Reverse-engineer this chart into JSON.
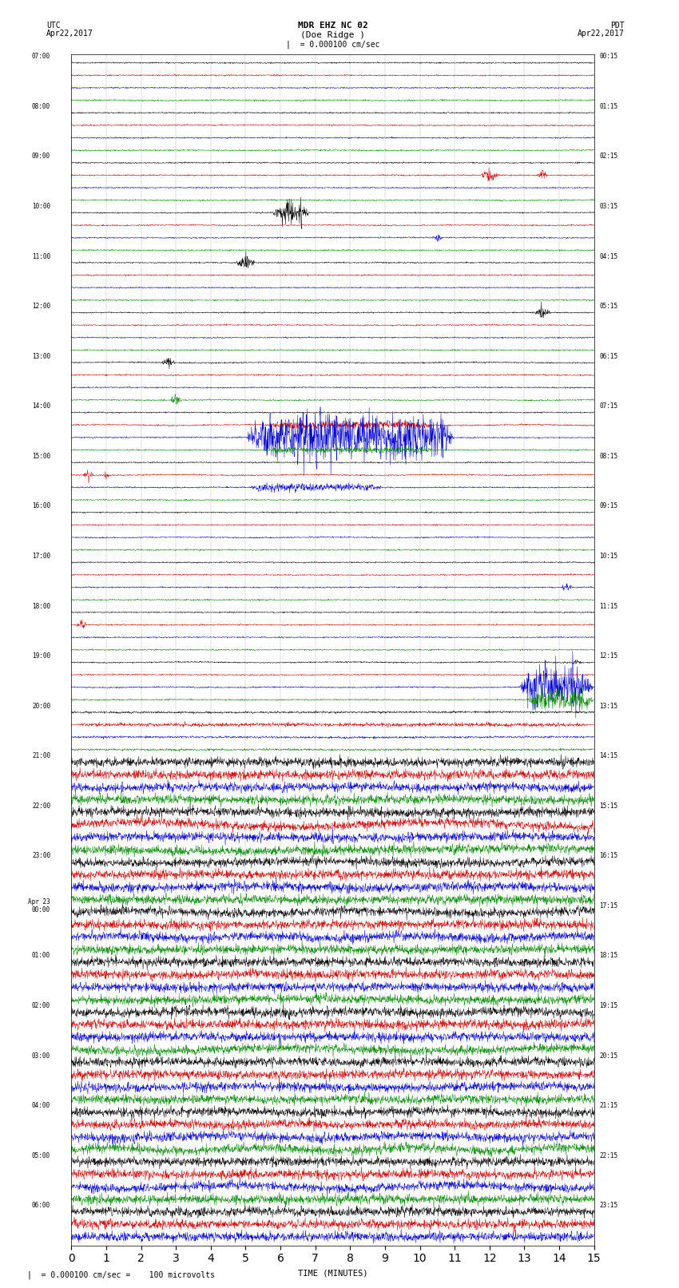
{
  "title_line1": "MDR EHZ NC 02",
  "title_line2": "(Doe Ridge )",
  "scale_label": "= 0.000100 cm/sec",
  "utc_label": "UTC",
  "pdt_label": "PDT",
  "date_left": "Apr22,2017",
  "date_right": "Apr22,2017",
  "xlabel": "TIME (MINUTES)",
  "footnote": "= 0.000100 cm/sec =    100 microvolts",
  "bg_color": "#ffffff",
  "trace_colors": [
    "#000000",
    "#cc0000",
    "#0000cc",
    "#008800"
  ],
  "utc_times_left": [
    "07:00",
    "",
    "",
    "",
    "08:00",
    "",
    "",
    "",
    "09:00",
    "",
    "",
    "",
    "10:00",
    "",
    "",
    "",
    "11:00",
    "",
    "",
    "",
    "12:00",
    "",
    "",
    "",
    "13:00",
    "",
    "",
    "",
    "14:00",
    "",
    "",
    "",
    "15:00",
    "",
    "",
    "",
    "16:00",
    "",
    "",
    "",
    "17:00",
    "",
    "",
    "",
    "18:00",
    "",
    "",
    "",
    "19:00",
    "",
    "",
    "",
    "20:00",
    "",
    "",
    "",
    "21:00",
    "",
    "",
    "",
    "22:00",
    "",
    "",
    "",
    "23:00",
    "",
    "",
    "",
    "Apr 23\n00:00",
    "",
    "",
    "",
    "01:00",
    "",
    "",
    "",
    "02:00",
    "",
    "",
    "",
    "03:00",
    "",
    "",
    "",
    "04:00",
    "",
    "",
    "",
    "05:00",
    "",
    "",
    "",
    "06:00",
    "",
    ""
  ],
  "pdt_times_right": [
    "00:15",
    "",
    "",
    "",
    "01:15",
    "",
    "",
    "",
    "02:15",
    "",
    "",
    "",
    "03:15",
    "",
    "",
    "",
    "04:15",
    "",
    "",
    "",
    "05:15",
    "",
    "",
    "",
    "06:15",
    "",
    "",
    "",
    "07:15",
    "",
    "",
    "",
    "08:15",
    "",
    "",
    "",
    "09:15",
    "",
    "",
    "",
    "10:15",
    "",
    "",
    "",
    "11:15",
    "",
    "",
    "",
    "12:15",
    "",
    "",
    "",
    "13:15",
    "",
    "",
    "",
    "14:15",
    "",
    "",
    "",
    "15:15",
    "",
    "",
    "",
    "16:15",
    "",
    "",
    "",
    "17:15",
    "",
    "",
    "",
    "18:15",
    "",
    "",
    "",
    "19:15",
    "",
    "",
    "",
    "20:15",
    "",
    "",
    "",
    "21:15",
    "",
    "",
    "",
    "22:15",
    "",
    "",
    "",
    "23:15",
    "",
    ""
  ],
  "n_rows": 95,
  "n_cols": 4,
  "minutes": 15,
  "xmin": 0,
  "xmax": 15,
  "samples": 1800,
  "noise_quiet": 0.025,
  "noise_medium": 0.08,
  "noise_loud": 0.18,
  "row_sep": 1.0,
  "grid_color": "#888888",
  "grid_lw": 0.3
}
